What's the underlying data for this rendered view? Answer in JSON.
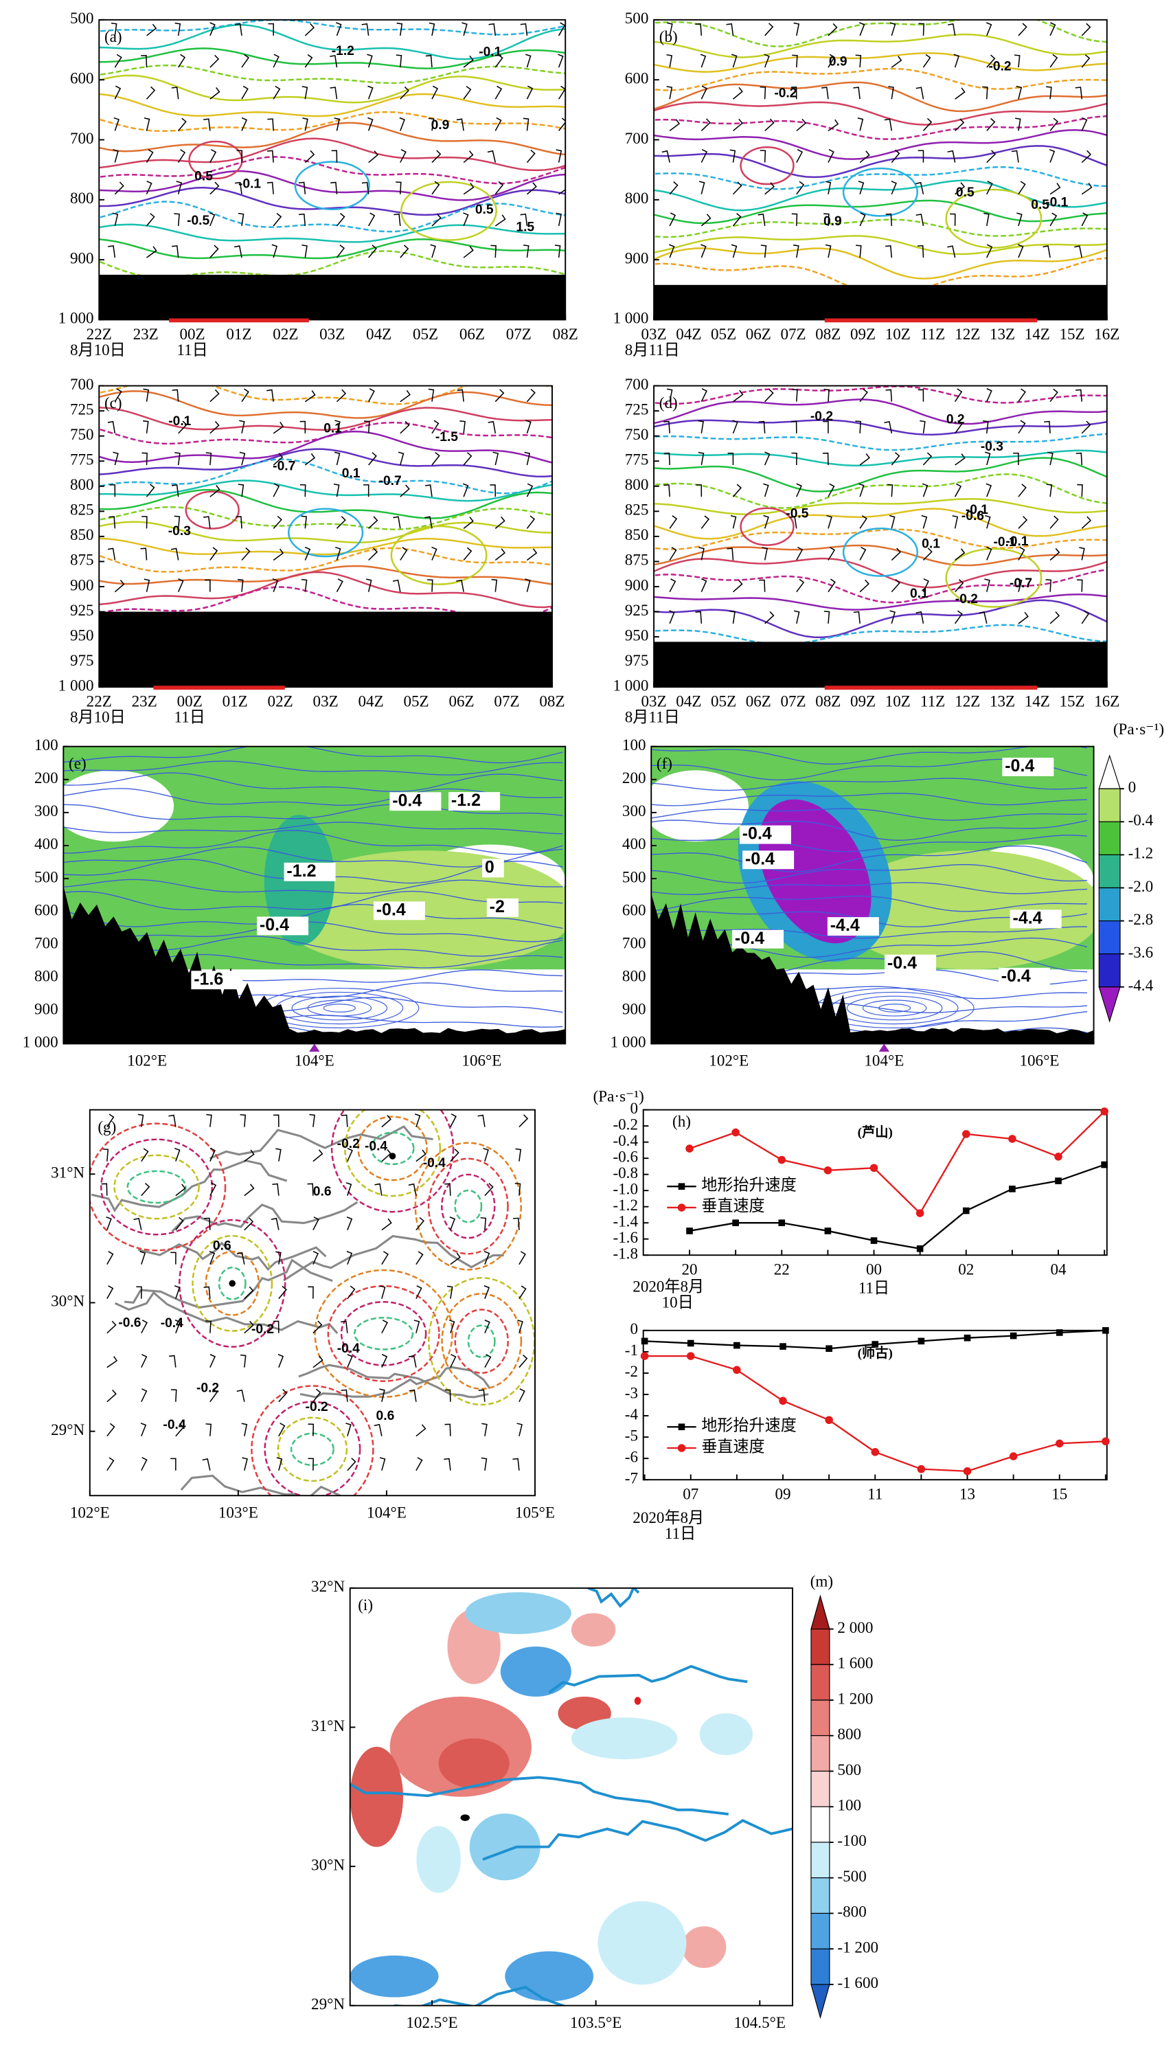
{
  "chart_data": [
    {
      "type": "contour",
      "label": "(a)",
      "categories": [
        "22Z",
        "23Z",
        "00Z",
        "01Z",
        "02Z",
        "03Z",
        "04Z",
        "05Z",
        "06Z",
        "07Z",
        "08Z"
      ],
      "date_labels": [
        "8月10日",
        "11日"
      ],
      "ylim": [
        500,
        1000
      ],
      "yticks": [
        500,
        600,
        700,
        800,
        900,
        {
          "value": 1000,
          "label": "1 000"
        }
      ],
      "annotations": [
        "-1.2",
        "-0.5",
        "0.5",
        "-0.1",
        "0.5",
        "1.5",
        "0.9",
        "-0.1"
      ]
    },
    {
      "type": "contour",
      "label": "(b)",
      "categories": [
        "03Z",
        "04Z",
        "05Z",
        "06Z",
        "07Z",
        "08Z",
        "09Z",
        "10Z",
        "11Z",
        "12Z",
        "13Z",
        "14Z",
        "15Z",
        "16Z"
      ],
      "date_labels": [
        "8月11日"
      ],
      "ylim": [
        500,
        1000
      ],
      "yticks": [
        500,
        600,
        700,
        800,
        900,
        {
          "value": 1000,
          "label": "1 000"
        }
      ],
      "annotations": [
        "0.9",
        "0.9",
        "0.5",
        "-0.1",
        "-0.2",
        "-0.2",
        "0.5"
      ]
    },
    {
      "type": "contour",
      "label": "(c)",
      "categories": [
        "22Z",
        "23Z",
        "00Z",
        "01Z",
        "02Z",
        "03Z",
        "04Z",
        "05Z",
        "06Z",
        "07Z",
        "08Z"
      ],
      "date_labels": [
        "8月10日",
        "11日"
      ],
      "ylim": [
        700,
        1000
      ],
      "yticks": [
        700,
        725,
        750,
        775,
        800,
        825,
        850,
        875,
        900,
        925,
        950,
        975,
        {
          "value": 1000,
          "label": "1 000"
        }
      ],
      "annotations": [
        "-1.5",
        "-0.3",
        "-0.7",
        "0.1",
        "0.1",
        "-0.1",
        "-0.7"
      ]
    },
    {
      "type": "contour",
      "label": "(d)",
      "categories": [
        "03Z",
        "04Z",
        "05Z",
        "06Z",
        "07Z",
        "08Z",
        "09Z",
        "10Z",
        "11Z",
        "12Z",
        "13Z",
        "14Z",
        "15Z",
        "16Z"
      ],
      "date_labels": [
        "8月11日"
      ],
      "ylim": [
        700,
        1000
      ],
      "yticks": [
        700,
        725,
        750,
        775,
        800,
        825,
        850,
        875,
        900,
        925,
        950,
        975,
        {
          "value": 1000,
          "label": "1 000"
        }
      ],
      "annotations": [
        "-0.7",
        "-0.6",
        "-0.5",
        "-0.3",
        "-0.1",
        "0.1",
        "-0.2",
        "-0.1",
        "0.1",
        "0.2",
        "-0.2",
        "-0.1"
      ]
    },
    {
      "type": "streamline",
      "label": "(e)",
      "xlim": [
        101,
        107
      ],
      "xticks": [
        {
          "value": 102,
          "label": "102°E"
        },
        {
          "value": 104,
          "label": "104°E"
        },
        {
          "value": 106,
          "label": "106°E"
        }
      ],
      "ylim": [
        100,
        1000
      ],
      "yticks": [
        100,
        200,
        300,
        400,
        500,
        600,
        700,
        800,
        900,
        {
          "value": 1000,
          "label": "1 000"
        }
      ],
      "annotations": [
        "-0.4",
        "-1.6",
        "-2",
        "-0.4",
        "-1.2",
        "-0.4",
        "-1.2",
        "0"
      ]
    },
    {
      "type": "streamline",
      "label": "(f)",
      "xlim": [
        101,
        106.7
      ],
      "xticks": [
        {
          "value": 102,
          "label": "102°E"
        },
        {
          "value": 104,
          "label": "104°E"
        },
        {
          "value": 106,
          "label": "106°E"
        }
      ],
      "ylim": [
        100,
        1000
      ],
      "yticks": [
        100,
        200,
        300,
        400,
        500,
        600,
        700,
        800,
        900,
        {
          "value": 1000,
          "label": "1 000"
        }
      ],
      "annotations": [
        "-0.4",
        "-4.4",
        "-0.4",
        "-0.4",
        "-0.4",
        "-4.4",
        "-0.4",
        "-0.4"
      ],
      "colorbar": {
        "unit": "(Pa·s⁻¹)",
        "ticks": [
          0,
          -0.4,
          -1.2,
          {
            "value": -2,
            "label": "-2.0"
          },
          -2.8,
          -3.6,
          -4.4
        ],
        "colors": [
          "#ffffff",
          "#b5e06b",
          "#4cc23a",
          "#2fb38a",
          "#2a9fd0",
          "#2355e6",
          "#2626c8",
          "#9b1ac0"
        ]
      }
    },
    {
      "type": "map",
      "label": "(g)",
      "xlim": [
        102,
        105
      ],
      "xticks": [
        {
          "value": 102,
          "label": "102°E"
        },
        {
          "value": 103,
          "label": "103°E"
        },
        {
          "value": 104,
          "label": "104°E"
        },
        {
          "value": 105,
          "label": "105°E"
        }
      ],
      "ylim": [
        28.5,
        31.5
      ],
      "yticks": [
        {
          "value": 29,
          "label": "29°N"
        },
        {
          "value": 30,
          "label": "30°N"
        },
        {
          "value": 31,
          "label": "31°N"
        }
      ],
      "annotations": [
        "-0.2",
        "-0.4",
        "0.6",
        "-0.4",
        "-0.4",
        "-0.2",
        "-0.4",
        "0.6",
        "-0.4",
        "-0.6",
        "0.6",
        "-0.2",
        "-0.2"
      ]
    },
    {
      "type": "line",
      "label": "(h)",
      "unit": "(Pa·s⁻¹)",
      "title": "(芦山)",
      "categories": [
        "20",
        null,
        "22",
        null,
        "00",
        null,
        "02",
        null,
        "04",
        null
      ],
      "date_labels": [
        "2020年8月",
        "10日",
        "11日"
      ],
      "ylim": [
        -1.8,
        0
      ],
      "yticks": [
        0,
        -0.2,
        -0.4,
        -0.6,
        -0.8,
        {
          "value": -1,
          "label": "-1.0"
        },
        -1.2,
        -1.4,
        -1.6,
        -1.8
      ],
      "series": [
        {
          "name": "地形抬升速度",
          "color": "#000000",
          "marker": "square",
          "values": [
            -1.5,
            -1.4,
            -1.4,
            -1.5,
            -1.62,
            -1.72,
            -1.25,
            -0.98,
            -0.88,
            -0.68
          ]
        },
        {
          "name": "垂直速度",
          "color": "#e41a1c",
          "marker": "circle",
          "values": [
            -0.48,
            -0.28,
            -0.62,
            -0.75,
            -0.72,
            -1.28,
            -0.3,
            -0.36,
            -0.58,
            -0.02
          ]
        }
      ]
    },
    {
      "type": "line",
      "title": "(师古)",
      "categories": [
        null,
        "07",
        null,
        "09",
        null,
        "11",
        null,
        "13",
        null,
        "15",
        null
      ],
      "date_labels": [
        "2020年8月",
        "11日"
      ],
      "ylim": [
        -7,
        0
      ],
      "yticks": [
        0,
        -1,
        -2,
        -3,
        -4,
        -5,
        -6,
        -7
      ],
      "series": [
        {
          "name": "地形抬升速度",
          "color": "#000000",
          "marker": "square",
          "values": [
            -0.5,
            -0.6,
            -0.7,
            -0.75,
            -0.85,
            -0.65,
            -0.5,
            -0.35,
            -0.25,
            -0.1,
            0
          ]
        },
        {
          "name": "垂直速度",
          "color": "#e41a1c",
          "marker": "circle",
          "values": [
            -1.2,
            -1.2,
            -1.85,
            -3.3,
            -4.2,
            -5.7,
            -6.5,
            -6.6,
            -5.9,
            -5.3,
            -5.2
          ]
        }
      ]
    },
    {
      "type": "map",
      "label": "(i)",
      "xlim": [
        102,
        104.7
      ],
      "xticks": [
        {
          "value": 102.5,
          "label": "102.5°E"
        },
        {
          "value": 103.5,
          "label": "103.5°E"
        },
        {
          "value": 104.5,
          "label": "104.5°E"
        }
      ],
      "ylim": [
        29,
        32
      ],
      "yticks": [
        {
          "value": 29,
          "label": "29°N"
        },
        {
          "value": 30,
          "label": "30°N"
        },
        {
          "value": 31,
          "label": "31°N"
        },
        {
          "value": 32,
          "label": "32°N"
        }
      ],
      "colorbar": {
        "unit": "(m)",
        "ticks": [
          {
            "value": 2000,
            "label": "2 000"
          },
          {
            "value": 1600,
            "label": "1 600"
          },
          {
            "value": 1200,
            "label": "1 200"
          },
          800,
          500,
          100,
          -100,
          -500,
          -800,
          {
            "value": -1200,
            "label": "-1 200"
          },
          {
            "value": -1600,
            "label": "-1 600"
          }
        ],
        "colors": [
          "#a51c1c",
          "#c93a35",
          "#db5a55",
          "#e8807b",
          "#f2aaa7",
          "#f9d3d1",
          "#ffffff",
          "#c9eef8",
          "#8ed0ee",
          "#4fa3e3",
          "#2f7fd6",
          "#1f5fc2"
        ]
      }
    }
  ]
}
